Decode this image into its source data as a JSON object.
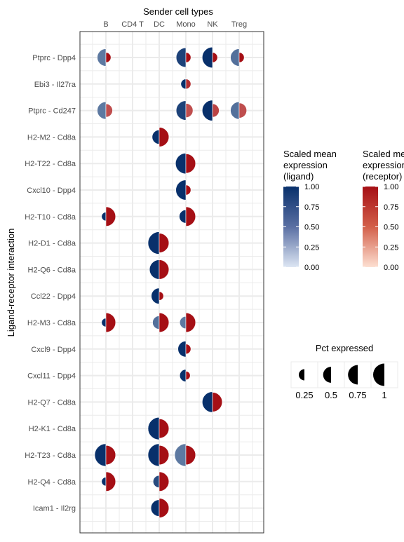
{
  "chart_data": {
    "type": "split-dot-plot",
    "title": "Sender cell types",
    "xlabel": "Sender cell types",
    "ylabel": "Ligand-receptor interaction",
    "x_categories": [
      "B",
      "CD4 T",
      "DC",
      "Mono",
      "NK",
      "Treg"
    ],
    "y_categories": [
      "Ptprc - Dpp4",
      "Ebi3 - Il27ra",
      "Ptprc - Cd247",
      "H2-M2 - Cd8a",
      "H2-T22 - Cd8a",
      "Cxcl10 - Dpp4",
      "H2-T10 - Cd8a",
      "H2-D1 - Cd8a",
      "H2-Q6 - Cd8a",
      "Ccl22 - Dpp4",
      "H2-M3 - Cd8a",
      "Cxcl9 - Dpp4",
      "Cxcl11 - Dpp4",
      "H2-Q7 - Cd8a",
      "H2-K1 - Cd8a",
      "H2-T23 - Cd8a",
      "H2-Q4 - Cd8a",
      "Icam1 - Il2rg"
    ],
    "ligand_color_range": [
      "#dde6f3",
      "#08306b"
    ],
    "receptor_color_range": [
      "#fde0d2",
      "#a50f15"
    ],
    "points": [
      {
        "x": "B",
        "y": "Ptprc - Dpp4",
        "lig_pct": 0.6,
        "lig_expr": 0.6,
        "rec_pct": 0.2,
        "rec_expr": 1.0
      },
      {
        "x": "Mono",
        "y": "Ptprc - Dpp4",
        "lig_pct": 0.75,
        "lig_expr": 0.9,
        "rec_pct": 0.2,
        "rec_expr": 1.0
      },
      {
        "x": "NK",
        "y": "Ptprc - Dpp4",
        "lig_pct": 0.85,
        "lig_expr": 1.0,
        "rec_pct": 0.2,
        "rec_expr": 1.0
      },
      {
        "x": "Treg",
        "y": "Ptprc - Dpp4",
        "lig_pct": 0.6,
        "lig_expr": 0.65,
        "rec_pct": 0.2,
        "rec_expr": 1.0
      },
      {
        "x": "Mono",
        "y": "Ebi3 - Il27ra",
        "lig_pct": 0.2,
        "lig_expr": 1.0,
        "rec_pct": 0.2,
        "rec_expr": 0.85
      },
      {
        "x": "B",
        "y": "Ptprc - Cd247",
        "lig_pct": 0.6,
        "lig_expr": 0.6,
        "rec_pct": 0.35,
        "rec_expr": 0.7
      },
      {
        "x": "Mono",
        "y": "Ptprc - Cd247",
        "lig_pct": 0.75,
        "lig_expr": 0.9,
        "rec_pct": 0.4,
        "rec_expr": 0.7
      },
      {
        "x": "NK",
        "y": "Ptprc - Cd247",
        "lig_pct": 0.85,
        "lig_expr": 1.0,
        "rec_pct": 0.35,
        "rec_expr": 0.75
      },
      {
        "x": "Treg",
        "y": "Ptprc - Cd247",
        "lig_pct": 0.6,
        "lig_expr": 0.65,
        "rec_pct": 0.45,
        "rec_expr": 0.7
      },
      {
        "x": "DC",
        "y": "H2-M2 - Cd8a",
        "lig_pct": 0.4,
        "lig_expr": 1.0,
        "rec_pct": 0.75,
        "rec_expr": 1.0
      },
      {
        "x": "Mono",
        "y": "H2-T22 - Cd8a",
        "lig_pct": 0.85,
        "lig_expr": 1.0,
        "rec_pct": 0.75,
        "rec_expr": 1.0
      },
      {
        "x": "Mono",
        "y": "Cxcl10 - Dpp4",
        "lig_pct": 0.8,
        "lig_expr": 1.0,
        "rec_pct": 0.2,
        "rec_expr": 1.0
      },
      {
        "x": "B",
        "y": "H2-T10 - Cd8a",
        "lig_pct": 0.15,
        "lig_expr": 1.0,
        "rec_pct": 0.75,
        "rec_expr": 1.0
      },
      {
        "x": "Mono",
        "y": "H2-T10 - Cd8a",
        "lig_pct": 0.35,
        "lig_expr": 1.0,
        "rec_pct": 0.75,
        "rec_expr": 1.0
      },
      {
        "x": "DC",
        "y": "H2-D1 - Cd8a",
        "lig_pct": 1.0,
        "lig_expr": 1.0,
        "rec_pct": 0.75,
        "rec_expr": 1.0
      },
      {
        "x": "DC",
        "y": "H2-Q6 - Cd8a",
        "lig_pct": 0.75,
        "lig_expr": 1.0,
        "rec_pct": 0.75,
        "rec_expr": 1.0
      },
      {
        "x": "DC",
        "y": "Ccl22 - Dpp4",
        "lig_pct": 0.5,
        "lig_expr": 1.0,
        "rec_pct": 0.15,
        "rec_expr": 1.0
      },
      {
        "x": "B",
        "y": "H2-M3 - Cd8a",
        "lig_pct": 0.15,
        "lig_expr": 1.0,
        "rec_pct": 0.75,
        "rec_expr": 1.0
      },
      {
        "x": "DC",
        "y": "H2-M3 - Cd8a",
        "lig_pct": 0.35,
        "lig_expr": 0.65,
        "rec_pct": 0.75,
        "rec_expr": 1.0
      },
      {
        "x": "Mono",
        "y": "H2-M3 - Cd8a",
        "lig_pct": 0.3,
        "lig_expr": 0.6,
        "rec_pct": 0.75,
        "rec_expr": 1.0
      },
      {
        "x": "Mono",
        "y": "Cxcl9 - Dpp4",
        "lig_pct": 0.5,
        "lig_expr": 1.0,
        "rec_pct": 0.2,
        "rec_expr": 1.0
      },
      {
        "x": "Mono",
        "y": "Cxcl11 - Dpp4",
        "lig_pct": 0.3,
        "lig_expr": 1.0,
        "rec_pct": 0.15,
        "rec_expr": 1.0
      },
      {
        "x": "NK",
        "y": "H2-Q7 - Cd8a",
        "lig_pct": 0.85,
        "lig_expr": 1.0,
        "rec_pct": 0.75,
        "rec_expr": 1.0
      },
      {
        "x": "DC",
        "y": "H2-K1 - Cd8a",
        "lig_pct": 1.0,
        "lig_expr": 1.0,
        "rec_pct": 0.75,
        "rec_expr": 1.0
      },
      {
        "x": "B",
        "y": "H2-T23 - Cd8a",
        "lig_pct": 1.0,
        "lig_expr": 1.0,
        "rec_pct": 0.75,
        "rec_expr": 1.0
      },
      {
        "x": "DC",
        "y": "H2-T23 - Cd8a",
        "lig_pct": 1.0,
        "lig_expr": 1.0,
        "rec_pct": 0.75,
        "rec_expr": 1.0
      },
      {
        "x": "Mono",
        "y": "H2-T23 - Cd8a",
        "lig_pct": 1.0,
        "lig_expr": 0.6,
        "rec_pct": 0.75,
        "rec_expr": 1.0
      },
      {
        "x": "B",
        "y": "H2-Q4 - Cd8a",
        "lig_pct": 0.15,
        "lig_expr": 1.0,
        "rec_pct": 0.75,
        "rec_expr": 1.0
      },
      {
        "x": "DC",
        "y": "H2-Q4 - Cd8a",
        "lig_pct": 0.3,
        "lig_expr": 0.85,
        "rec_pct": 0.75,
        "rec_expr": 1.0
      },
      {
        "x": "DC",
        "y": "Icam1 - Il2rg",
        "lig_pct": 0.55,
        "lig_expr": 1.0,
        "rec_pct": 0.75,
        "rec_expr": 1.0
      }
    ],
    "legends": {
      "ligand": {
        "title_lines": [
          "Scaled mean",
          "expression",
          "(ligand)"
        ],
        "ticks": [
          "1.00",
          "0.75",
          "0.50",
          "0.25",
          "0.00"
        ]
      },
      "receptor": {
        "title_lines": [
          "Scaled mean",
          "expression",
          "(receptor)"
        ],
        "ticks": [
          "1.00",
          "0.75",
          "0.50",
          "0.25",
          "0.00"
        ]
      },
      "pct": {
        "title": "Pct expressed",
        "values": [
          0.25,
          0.5,
          0.75,
          1
        ],
        "labels": [
          "0.25",
          "0.5",
          "0.75",
          "1"
        ]
      }
    }
  }
}
